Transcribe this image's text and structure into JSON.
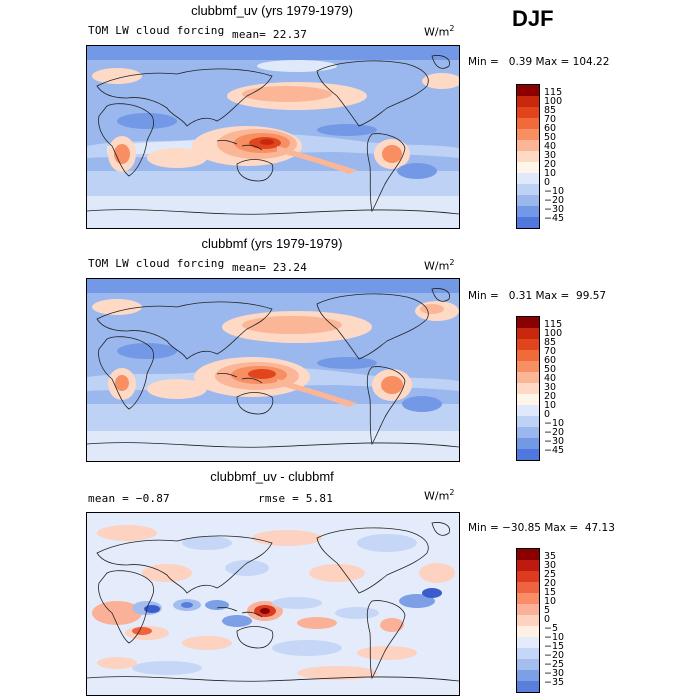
{
  "season": "DJF",
  "panels": [
    {
      "title": "clubbmf_uv (yrs 1979-1979)",
      "field_name": "TOM LW cloud forcing",
      "left_stat": "",
      "mean": "mean=  22.37",
      "rmse": "",
      "units": "W/m",
      "units_exp": "2",
      "minmax": "Min =   0.39 Max = 104.22"
    },
    {
      "title": "clubbmf (yrs 1979-1979)",
      "field_name": "TOM LW cloud forcing",
      "left_stat": "",
      "mean": "mean=  23.24",
      "rmse": "",
      "units": "W/m",
      "units_exp": "2",
      "minmax": "Min =   0.31 Max =  99.57"
    },
    {
      "title": "clubbmf_uv - clubbmf",
      "field_name": "",
      "left_stat": "mean =  −0.87",
      "mean": "",
      "rmse": "rmse =   5.81",
      "units": "W/m",
      "units_exp": "2",
      "minmax": "Min = −30.85 Max =  47.13"
    }
  ],
  "colorbars": [
    {
      "labels": [
        "115",
        "100",
        "85",
        "70",
        "60",
        "50",
        "40",
        "30",
        "20",
        "10",
        "0",
        "−10",
        "−20",
        "−30",
        "−45"
      ],
      "colors": [
        "#8b0000",
        "#c8280e",
        "#e0451e",
        "#f06a3a",
        "#f78f63",
        "#fbb597",
        "#fdd9c6",
        "#fff5eb",
        "#dfe9fa",
        "#bdd2f5",
        "#9ab8ee",
        "#7398e6",
        "#4f77dc",
        "#2f50cc",
        "#1a2fb0",
        "#0a1a8c"
      ]
    },
    {
      "labels": [
        "115",
        "100",
        "85",
        "70",
        "60",
        "50",
        "40",
        "30",
        "20",
        "10",
        "0",
        "−10",
        "−20",
        "−30",
        "−45"
      ],
      "colors": [
        "#8b0000",
        "#c8280e",
        "#e0451e",
        "#f06a3a",
        "#f78f63",
        "#fbb597",
        "#fdd9c6",
        "#fff5eb",
        "#dfe9fa",
        "#bdd2f5",
        "#9ab8ee",
        "#7398e6",
        "#4f77dc",
        "#2f50cc",
        "#1a2fb0",
        "#0a1a8c"
      ]
    },
    {
      "labels": [
        "35",
        "30",
        "25",
        "20",
        "15",
        "10",
        "5",
        "0",
        "−5",
        "−10",
        "−15",
        "−20",
        "−25",
        "−30",
        "−35"
      ],
      "colors": [
        "#8b0000",
        "#c01a10",
        "#dd3a22",
        "#ef6440",
        "#f88d68",
        "#fbb197",
        "#fdd2c0",
        "#fff0e6",
        "#e4ecfb",
        "#c5d6f6",
        "#a3bdef",
        "#7d9fe6",
        "#5a7edb",
        "#3a5ccd",
        "#2038b8",
        "#0e1a90"
      ]
    }
  ],
  "chart_data": [
    {
      "type": "heatmap",
      "title": "clubbmf_uv (yrs 1979-1979)",
      "variable": "TOM LW cloud forcing",
      "units": "W/m2",
      "season": "DJF",
      "mean": 22.37,
      "min": 0.39,
      "max": 104.22,
      "contour_levels": [
        -45,
        -30,
        -20,
        -10,
        0,
        10,
        20,
        30,
        40,
        50,
        60,
        70,
        85,
        100,
        115
      ]
    },
    {
      "type": "heatmap",
      "title": "clubbmf (yrs 1979-1979)",
      "variable": "TOM LW cloud forcing",
      "units": "W/m2",
      "season": "DJF",
      "mean": 23.24,
      "min": 0.31,
      "max": 99.57,
      "contour_levels": [
        -45,
        -30,
        -20,
        -10,
        0,
        10,
        20,
        30,
        40,
        50,
        60,
        70,
        85,
        100,
        115
      ]
    },
    {
      "type": "heatmap",
      "title": "clubbmf_uv - clubbmf",
      "units": "W/m2",
      "season": "DJF",
      "mean": -0.87,
      "rmse": 5.81,
      "min": -30.85,
      "max": 47.13,
      "contour_levels": [
        -35,
        -30,
        -25,
        -20,
        -15,
        -10,
        -5,
        0,
        5,
        10,
        15,
        20,
        25,
        30,
        35
      ]
    }
  ]
}
